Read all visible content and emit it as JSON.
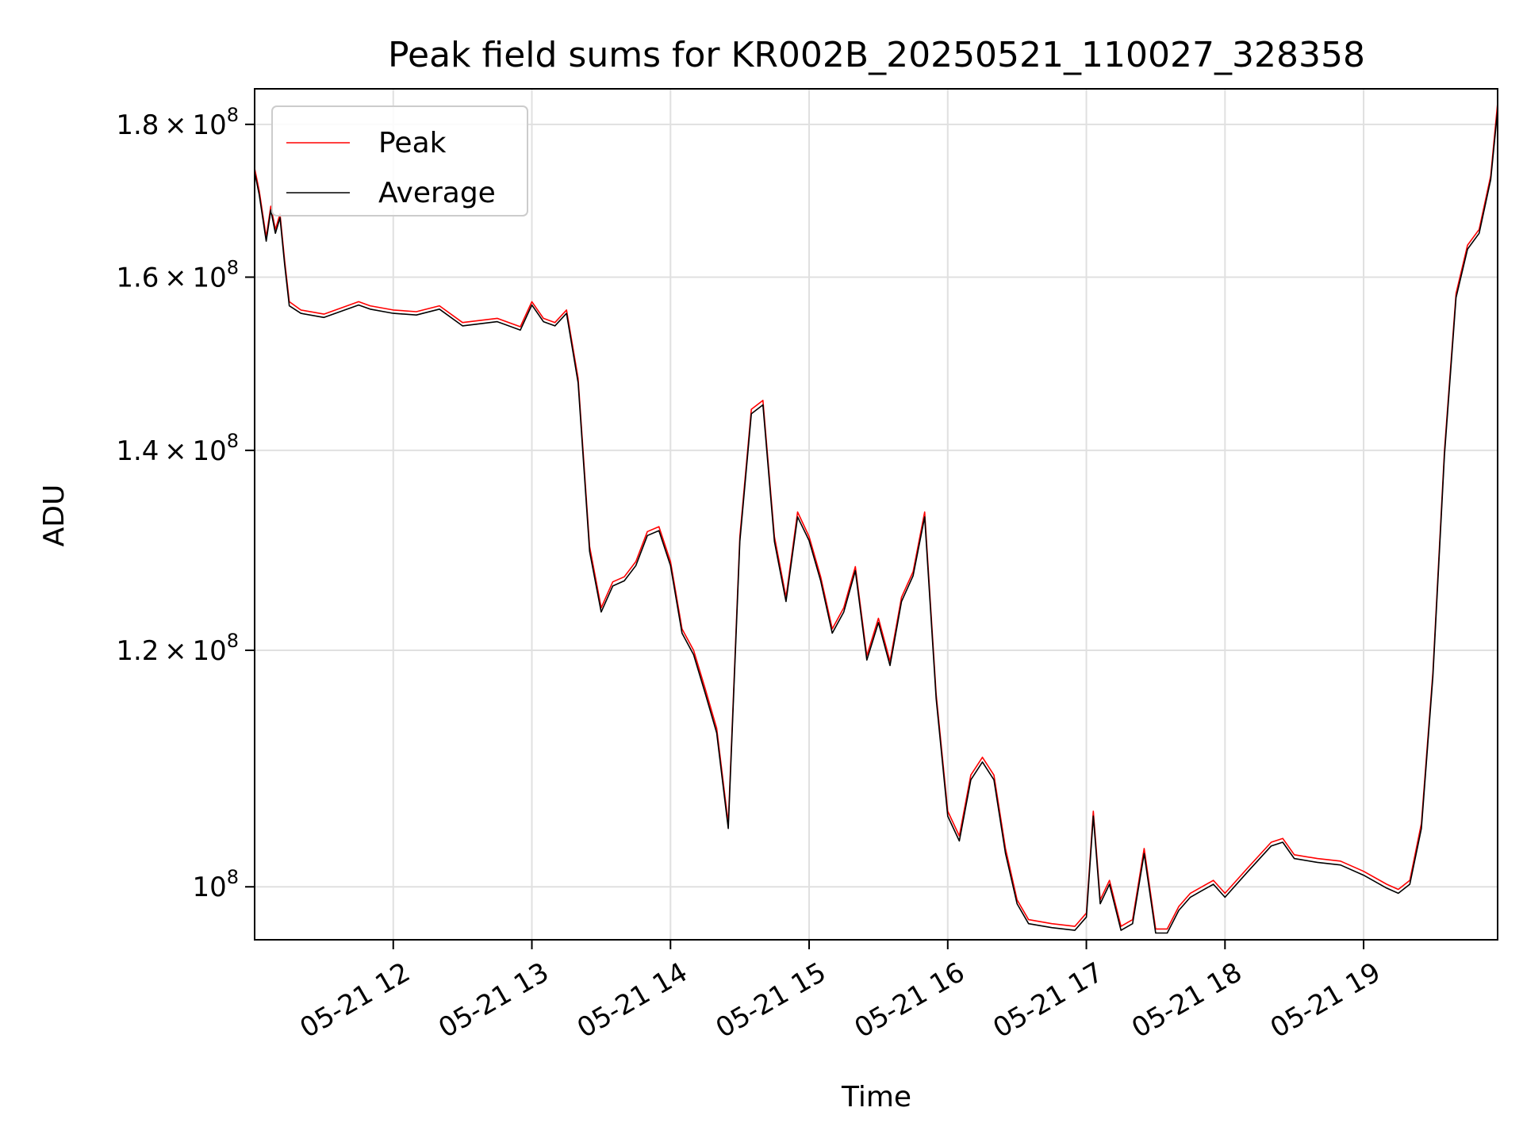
{
  "chart_data": {
    "type": "line",
    "title": "Peak field sums for KR002B_20250521_110027_328358",
    "xlabel": "Time",
    "ylabel": "ADU",
    "yscale": "log",
    "xlim": [
      "05-21 11:00",
      "05-21 19:58"
    ],
    "ylim": [
      96000000,
      185000000
    ],
    "grid": true,
    "legend_position": "top-left",
    "x_tick_labels": [
      "05-21 12",
      "05-21 13",
      "05-21 14",
      "05-21 15",
      "05-21 16",
      "05-21 17",
      "05-21 18",
      "05-21 19"
    ],
    "x_ticks": [
      "05-21 12:00",
      "05-21 13:00",
      "05-21 14:00",
      "05-21 15:00",
      "05-21 16:00",
      "05-21 17:00",
      "05-21 18:00",
      "05-21 19:00"
    ],
    "y_ticks": [
      {
        "value": 100000000,
        "mantissa": "",
        "exponent": "8"
      },
      {
        "value": 120000000,
        "mantissa": "1.2",
        "exponent": "8"
      },
      {
        "value": 140000000,
        "mantissa": "1.4",
        "exponent": "8"
      },
      {
        "value": 160000000,
        "mantissa": "1.6",
        "exponent": "8"
      },
      {
        "value": 180000000,
        "mantissa": "1.8",
        "exponent": "8"
      }
    ],
    "series": [
      {
        "name": "Peak",
        "color": "#ff0000",
        "x": [
          "05-21 11:00",
          "05-21 11:02",
          "05-21 11:05",
          "05-21 11:07",
          "05-21 11:09",
          "05-21 11:11",
          "05-21 11:13",
          "05-21 11:15",
          "05-21 11:20",
          "05-21 11:30",
          "05-21 11:45",
          "05-21 11:50",
          "05-21 12:00",
          "05-21 12:10",
          "05-21 12:20",
          "05-21 12:30",
          "05-21 12:45",
          "05-21 12:55",
          "05-21 13:00",
          "05-21 13:05",
          "05-21 13:10",
          "05-21 13:15",
          "05-21 13:20",
          "05-21 13:25",
          "05-21 13:30",
          "05-21 13:35",
          "05-21 13:40",
          "05-21 13:45",
          "05-21 13:50",
          "05-21 13:55",
          "05-21 14:00",
          "05-21 14:05",
          "05-21 14:10",
          "05-21 14:15",
          "05-21 14:20",
          "05-21 14:25",
          "05-21 14:30",
          "05-21 14:35",
          "05-21 14:40",
          "05-21 14:45",
          "05-21 14:50",
          "05-21 14:55",
          "05-21 15:00",
          "05-21 15:05",
          "05-21 15:10",
          "05-21 15:15",
          "05-21 15:20",
          "05-21 15:25",
          "05-21 15:30",
          "05-21 15:35",
          "05-21 15:40",
          "05-21 15:45",
          "05-21 15:50",
          "05-21 15:55",
          "05-21 16:00",
          "05-21 16:05",
          "05-21 16:10",
          "05-21 16:15",
          "05-21 16:20",
          "05-21 16:25",
          "05-21 16:30",
          "05-21 16:35",
          "05-21 16:45",
          "05-21 16:55",
          "05-21 17:00",
          "05-21 17:03",
          "05-21 17:06",
          "05-21 17:10",
          "05-21 17:15",
          "05-21 17:20",
          "05-21 17:25",
          "05-21 17:30",
          "05-21 17:35",
          "05-21 17:40",
          "05-21 17:45",
          "05-21 17:50",
          "05-21 17:55",
          "05-21 18:00",
          "05-21 18:10",
          "05-21 18:20",
          "05-21 18:25",
          "05-21 18:30",
          "05-21 18:40",
          "05-21 18:50",
          "05-21 19:00",
          "05-21 19:10",
          "05-21 19:15",
          "05-21 19:20",
          "05-21 19:25",
          "05-21 19:30",
          "05-21 19:35",
          "05-21 19:40",
          "05-21 19:45",
          "05-21 19:50",
          "05-21 19:55",
          "05-21 19:58"
        ],
        "values": [
          174000000,
          171000000,
          165000000,
          169000000,
          166000000,
          168000000,
          162000000,
          157000000,
          156000000,
          155500000,
          157000000,
          156500000,
          156000000,
          155800000,
          156500000,
          154500000,
          155000000,
          154000000,
          157000000,
          155000000,
          154500000,
          156000000,
          148000000,
          130000000,
          124000000,
          126500000,
          127000000,
          128500000,
          131500000,
          132000000,
          128500000,
          122000000,
          120000000,
          116500000,
          113000000,
          105000000,
          131000000,
          144500000,
          145500000,
          131000000,
          125000000,
          133500000,
          131000000,
          127000000,
          122000000,
          124000000,
          128000000,
          119500000,
          123000000,
          119000000,
          125000000,
          127500000,
          133500000,
          116000000,
          106000000,
          104000000,
          109000000,
          110500000,
          109000000,
          103000000,
          99000000,
          97500000,
          97200000,
          97000000,
          98000000,
          106000000,
          99000000,
          100500000,
          97000000,
          97500000,
          103000000,
          96800000,
          96800000,
          98500000,
          99500000,
          100000000,
          100500000,
          99500000,
          101500000,
          103500000,
          103800000,
          102500000,
          102200000,
          102000000,
          101200000,
          100200000,
          99800000,
          100500000,
          105000000,
          118000000,
          140000000,
          158000000,
          164000000,
          166000000,
          173000000,
          183000000
        ]
      },
      {
        "name": "Average",
        "color": "#000000",
        "x": [
          "05-21 11:00",
          "05-21 11:02",
          "05-21 11:05",
          "05-21 11:07",
          "05-21 11:09",
          "05-21 11:11",
          "05-21 11:13",
          "05-21 11:15",
          "05-21 11:20",
          "05-21 11:30",
          "05-21 11:45",
          "05-21 11:50",
          "05-21 12:00",
          "05-21 12:10",
          "05-21 12:20",
          "05-21 12:30",
          "05-21 12:45",
          "05-21 12:55",
          "05-21 13:00",
          "05-21 13:05",
          "05-21 13:10",
          "05-21 13:15",
          "05-21 13:20",
          "05-21 13:25",
          "05-21 13:30",
          "05-21 13:35",
          "05-21 13:40",
          "05-21 13:45",
          "05-21 13:50",
          "05-21 13:55",
          "05-21 14:00",
          "05-21 14:05",
          "05-21 14:10",
          "05-21 14:15",
          "05-21 14:20",
          "05-21 14:25",
          "05-21 14:30",
          "05-21 14:35",
          "05-21 14:40",
          "05-21 14:45",
          "05-21 14:50",
          "05-21 14:55",
          "05-21 15:00",
          "05-21 15:05",
          "05-21 15:10",
          "05-21 15:15",
          "05-21 15:20",
          "05-21 15:25",
          "05-21 15:30",
          "05-21 15:35",
          "05-21 15:40",
          "05-21 15:45",
          "05-21 15:50",
          "05-21 15:55",
          "05-21 16:00",
          "05-21 16:05",
          "05-21 16:10",
          "05-21 16:15",
          "05-21 16:20",
          "05-21 16:25",
          "05-21 16:30",
          "05-21 16:35",
          "05-21 16:45",
          "05-21 16:55",
          "05-21 17:00",
          "05-21 17:03",
          "05-21 17:06",
          "05-21 17:10",
          "05-21 17:15",
          "05-21 17:20",
          "05-21 17:25",
          "05-21 17:30",
          "05-21 17:35",
          "05-21 17:40",
          "05-21 17:45",
          "05-21 17:50",
          "05-21 17:55",
          "05-21 18:00",
          "05-21 18:10",
          "05-21 18:20",
          "05-21 18:25",
          "05-21 18:30",
          "05-21 18:40",
          "05-21 18:50",
          "05-21 19:00",
          "05-21 19:10",
          "05-21 19:15",
          "05-21 19:20",
          "05-21 19:25",
          "05-21 19:30",
          "05-21 19:35",
          "05-21 19:40",
          "05-21 19:45",
          "05-21 19:50",
          "05-21 19:55",
          "05-21 19:58"
        ],
        "values": [
          173500000,
          170500000,
          164500000,
          168500000,
          165500000,
          167500000,
          161500000,
          156500000,
          155600000,
          155100000,
          156600000,
          156100000,
          155600000,
          155400000,
          156100000,
          154100000,
          154600000,
          153600000,
          156600000,
          154600000,
          154100000,
          155600000,
          147500000,
          129500000,
          123600000,
          126100000,
          126600000,
          128100000,
          131100000,
          131600000,
          128100000,
          121600000,
          119600000,
          116100000,
          112600000,
          104600000,
          130500000,
          144000000,
          145000000,
          130500000,
          124600000,
          133000000,
          130600000,
          126600000,
          121600000,
          123600000,
          127600000,
          119100000,
          122600000,
          118600000,
          124600000,
          127100000,
          133000000,
          115600000,
          105600000,
          103600000,
          108600000,
          110100000,
          108600000,
          102600000,
          98700000,
          97200000,
          96900000,
          96700000,
          97700000,
          105600000,
          98700000,
          100200000,
          96700000,
          97200000,
          102600000,
          96500000,
          96500000,
          98200000,
          99200000,
          99700000,
          100200000,
          99200000,
          101200000,
          103200000,
          103500000,
          102200000,
          101900000,
          101700000,
          100900000,
          99900000,
          99500000,
          100200000,
          104600000,
          117600000,
          139500000,
          157500000,
          163500000,
          165500000,
          172500000,
          182000000
        ]
      }
    ]
  }
}
